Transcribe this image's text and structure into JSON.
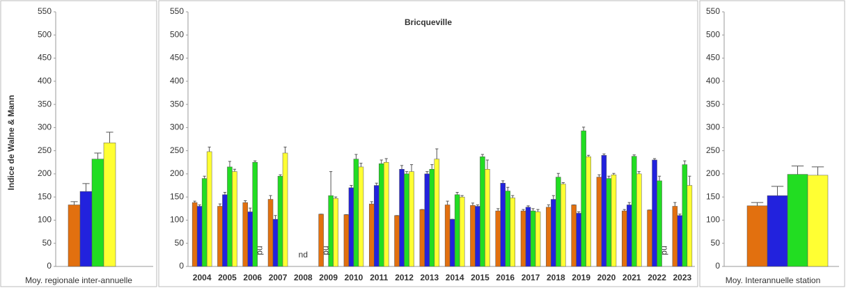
{
  "chart_data": [
    {
      "type": "bar",
      "xlabel": "Moy. regionale inter-annuelle",
      "ylabel": "Indice de Walne & Mann",
      "ylim": [
        0,
        550
      ],
      "yticks": [
        0,
        50,
        100,
        150,
        200,
        250,
        300,
        350,
        400,
        450,
        500,
        550
      ],
      "series": [
        {
          "color": "#e2700f",
          "values": [
            133
          ],
          "errors": [
            7
          ]
        },
        {
          "color": "#2222dd",
          "values": [
            162
          ],
          "errors": [
            17
          ]
        },
        {
          "color": "#22dd22",
          "values": [
            232
          ],
          "errors": [
            13
          ]
        },
        {
          "color": "#ffff33",
          "values": [
            267
          ],
          "errors": [
            23
          ]
        }
      ]
    },
    {
      "type": "bar",
      "title": "Bricqueville",
      "ylim": [
        0,
        550
      ],
      "yticks": [
        0,
        50,
        100,
        150,
        200,
        250,
        300,
        350,
        400,
        450,
        500,
        550
      ],
      "categories": [
        "2004",
        "2005",
        "2006",
        "2007",
        "2008",
        "2009",
        "2010",
        "2011",
        "2012",
        "2013",
        "2014",
        "2015",
        "2016",
        "2017",
        "2018",
        "2019",
        "2020",
        "2021",
        "2022",
        "2023"
      ],
      "series": [
        {
          "color": "#e2700f",
          "values": [
            138,
            130,
            138,
            145,
            null,
            113,
            112,
            135,
            110,
            123,
            133,
            132,
            120,
            120,
            128,
            133,
            193,
            120,
            122,
            130
          ],
          "errors": [
            3,
            5,
            4,
            8,
            null,
            0,
            0,
            5,
            0,
            0,
            8,
            5,
            5,
            3,
            5,
            0,
            5,
            3,
            0,
            8
          ]
        },
        {
          "color": "#2222dd",
          "values": [
            130,
            155,
            118,
            102,
            null,
            null,
            170,
            175,
            210,
            200,
            102,
            130,
            180,
            128,
            145,
            115,
            240,
            133,
            230,
            110
          ],
          "errors": [
            3,
            5,
            8,
            8,
            null,
            null,
            5,
            5,
            8,
            5,
            0,
            3,
            5,
            3,
            8,
            3,
            3,
            5,
            3,
            3
          ]
        },
        {
          "color": "#22dd22",
          "values": [
            190,
            215,
            225,
            195,
            null,
            153,
            232,
            222,
            200,
            210,
            155,
            237,
            163,
            120,
            193,
            293,
            190,
            238,
            185,
            220
          ],
          "errors": [
            5,
            12,
            3,
            3,
            null,
            52,
            10,
            8,
            5,
            10,
            5,
            5,
            8,
            5,
            8,
            8,
            5,
            3,
            10,
            8
          ]
        },
        {
          "color": "#ffff33",
          "values": [
            248,
            205,
            null,
            245,
            null,
            147,
            215,
            225,
            205,
            232,
            150,
            210,
            148,
            118,
            178,
            237,
            198,
            200,
            null,
            175
          ],
          "errors": [
            10,
            5,
            null,
            13,
            null,
            3,
            8,
            8,
            15,
            22,
            3,
            20,
            5,
            5,
            3,
            3,
            3,
            5,
            null,
            20
          ]
        }
      ],
      "annotations": [
        {
          "text": "nd",
          "category": 4
        },
        {
          "text": "nd",
          "category": 2,
          "series": 3
        },
        {
          "text": "nd",
          "category": 5,
          "series": 1
        },
        {
          "text": "nd",
          "category": 18,
          "series": 3
        }
      ]
    },
    {
      "type": "bar",
      "xlabel": "Moy. Interannuelle station",
      "ylim": [
        0,
        550
      ],
      "yticks": [
        0,
        50,
        100,
        150,
        200,
        250,
        300,
        350,
        400,
        450,
        500,
        550
      ],
      "series": [
        {
          "color": "#e2700f",
          "values": [
            131
          ],
          "errors": [
            7
          ]
        },
        {
          "color": "#2222dd",
          "values": [
            153
          ],
          "errors": [
            20
          ]
        },
        {
          "color": "#22dd22",
          "values": [
            199
          ],
          "errors": [
            18
          ]
        },
        {
          "color": "#ffff33",
          "values": [
            197
          ],
          "errors": [
            18
          ]
        }
      ]
    }
  ]
}
